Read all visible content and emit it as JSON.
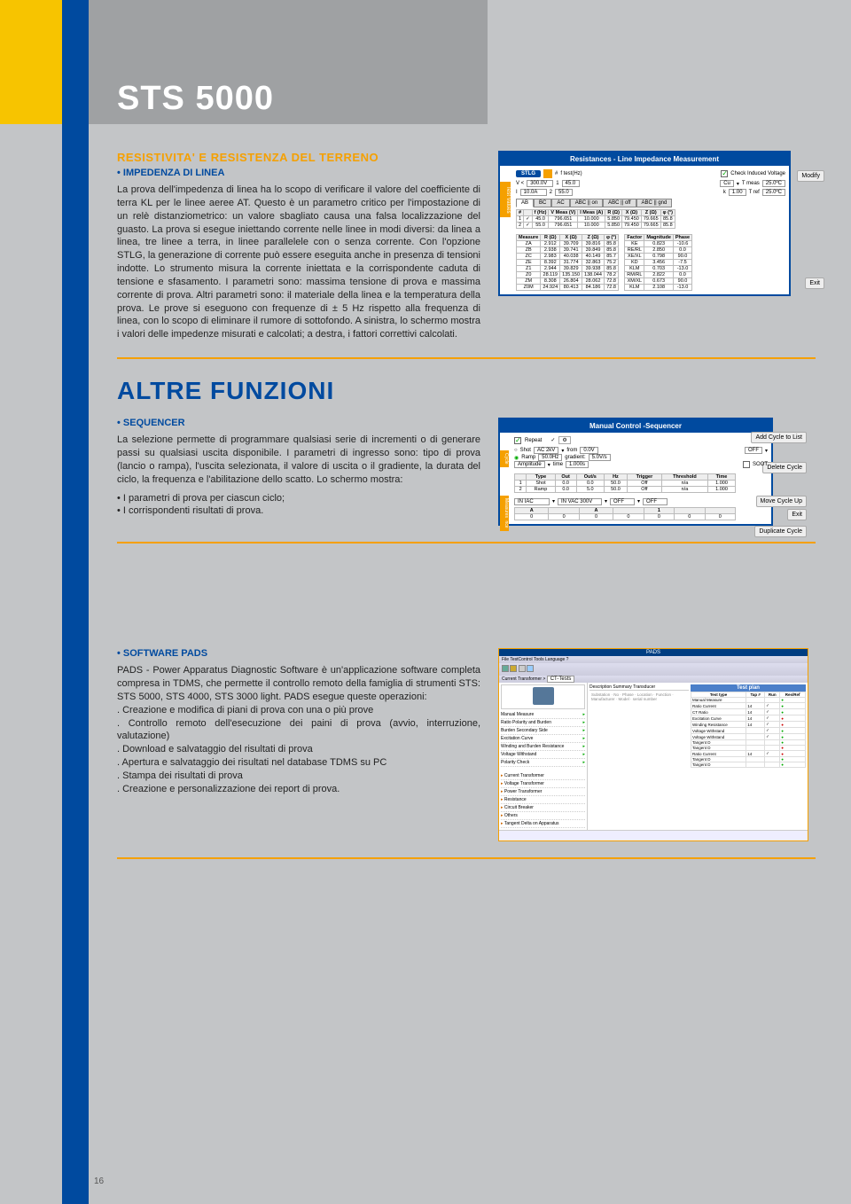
{
  "product_title": "STS 5000",
  "page_number": "16",
  "section1": {
    "title": "RESISTIVITA' E RESISTENZA DEL TERRENO",
    "subtitle": "• IMPEDENZA DI LINEA",
    "body": "La prova dell'impedenza di linea ha lo scopo di verificare il valore del coefficiente di terra KL per le linee aeree AT. Questo è un parametro critico per l'impostazione di un relè distanziometrico: un valore sbagliato causa una falsa localizzazione del guasto. La prova si esegue iniettando corrente nelle linee in modi diversi: da linea a linea, tre linee a terra, in linee parallelele con o senza corrente. Con l'opzione STLG, la generazione di corrente può essere eseguita anche in presenza di tensioni indotte. Lo strumento misura la corrente iniettata e la corrispondente caduta di tensione e sfasamento. I parametri sono: massima tensione di prova e massima corrente di prova. Altri parametri sono: il materiale della linea e la temperatura della prova. Le prove si eseguono con frequenze di ± 5 Hz rispetto alla frequenza di linea, con lo scopo di eliminare il rumore di sottofondo. A sinistra, lo schermo mostra i valori delle impedenze misurati e calcolati; a destra, i fattori correttivi calcolati."
  },
  "section2_big": "ALTRE FUNZIONI",
  "section2": {
    "subtitle": "• SEQUENCER",
    "body": "La selezione permette di programmare qualsiasi serie di incrementi o di generare passi su qualsiasi uscita disponibile. I parametri di ingresso sono: tipo di prova (lancio o rampa), l'uscita selezionata, il valore di uscita o il gradiente, la durata del ciclo, la frequenza e l'abilitazione dello scatto. Lo schermo mostra:",
    "bullet1": "• I parametri di prova per ciascun ciclo;",
    "bullet2": "• I corrispondenti risultati di prova."
  },
  "section3": {
    "subtitle": "• SOFTWARE PADS",
    "body": "PADS - Power Apparatus Diagnostic Software è un'applicazione software completa compresa in TDMS, che permette il controllo remoto della famiglia di strumenti STS: STS 5000, STS 4000, STS 3000 light. PADS esegue queste operazioni:",
    "l1": ". Creazione e modifica di piani di prova con una o più prove",
    "l2": ". Controllo remoto dell'esecuzione dei paini di prova (avvio, interruzione, valutazione)",
    "l3": ". Download e salvataggio del risultati di prova",
    "l4": ". Apertura e salvataggio dei risultati nel database TDMS su PC",
    "l5": ". Stampa dei risultati di prova",
    "l6": ". Creazione e personalizzazione dei report di prova."
  },
  "shot1": {
    "title": "Resistances - Line Impedance Measurement",
    "vtab": "Test Values",
    "modify": "Modify",
    "exit": "Exit",
    "stlg": "STLG",
    "ftest": "f test(Hz)",
    "check_induced": "Check Induced Voltage",
    "v1": "300.0V",
    "f1": "45.0",
    "i1": "10.0A",
    "f2": "55.0",
    "cu": "Cu",
    "tmeas": "T meas",
    "tmeas_v": "25.0ºC",
    "k": "k",
    "k_v": "1.00",
    "tref": "T ref",
    "tref_v": "25.0ºC",
    "tabs": [
      "AB",
      "BC",
      "AC",
      "ABC || on",
      "ABC || off",
      "ABC || gnd"
    ],
    "t1_head": [
      "#",
      "",
      "f (Hz)",
      "V Meas (V)",
      "I Meas (A)",
      "R (Ω)",
      "X (Ω)",
      "Z (Ω)",
      "φ (°)"
    ],
    "t1_rows": [
      [
        "1",
        "✓",
        "45.0",
        "796.651",
        "10.000",
        "5.850",
        "79.450",
        "79.665",
        "85.8"
      ],
      [
        "2",
        "✓",
        "55.0",
        "796.651",
        "10.000",
        "5.850",
        "79.450",
        "79.665",
        "85.8"
      ]
    ],
    "t2l_head": [
      "Measure",
      "R (Ω)",
      "X (Ω)",
      "Z (Ω)",
      "φ (°)"
    ],
    "t2l_rows": [
      [
        "ZA",
        "2.912",
        "39.709",
        "39.816",
        "85.8"
      ],
      [
        "ZB",
        "2.938",
        "39.741",
        "39.849",
        "85.8"
      ],
      [
        "ZC",
        "2.983",
        "40.038",
        "40.149",
        "85.7"
      ],
      [
        "ZE",
        "8.392",
        "31.774",
        "32.863",
        "75.2"
      ],
      [
        "Z1",
        "2.944",
        "39.829",
        "39.938",
        "85.8"
      ],
      [
        "Z0",
        "28.119",
        "135.150",
        "138.044",
        "78.2"
      ],
      [
        "ZM",
        "8.308",
        "26.804",
        "28.062",
        "72.8"
      ],
      [
        "Z0M",
        "24.924",
        "80.413",
        "84.186",
        "72.8"
      ]
    ],
    "t2r_head": [
      "Factor",
      "Magnitude",
      "Phase"
    ],
    "t2r_rows": [
      [
        "KE",
        "0.823",
        "-10.6"
      ],
      [
        "RE/RL",
        "2.850",
        "0.0"
      ],
      [
        "XE/XL",
        "0.798",
        "90.0"
      ],
      [
        "KD",
        "3.456",
        "-7.5"
      ],
      [
        "KLM",
        "0.703",
        "-13.0"
      ],
      [
        "RM/RL",
        "2.822",
        "0.0"
      ],
      [
        "XM/XL",
        "0.673",
        "90.0"
      ],
      [
        "KLM",
        "2.108",
        "-13.0"
      ]
    ]
  },
  "shot2": {
    "title": "Manual Control -Sequencer",
    "repeat": "Repeat",
    "vtab1": "Cycle",
    "vtab2": "Sequence",
    "vtab3": "Measures",
    "btn1": "Add Cycle to List",
    "btn2": "Delete Cycle",
    "btn3": "Move Cycle Up",
    "btn4": "Duplicate Cycle",
    "btn5": "Exit",
    "shot": "Shot",
    "ramp": "Ramp",
    "ac2kv": "AC 2kV",
    "from": "from",
    "from_v": "0.0V",
    "hz50": "50.0Hz",
    "grad": "gradient:",
    "grad_v": "5.0V/s",
    "amp": "Amplitude",
    "time": "time",
    "time_v": "1.000s",
    "off": "OFF",
    "soot": "SOOT",
    "tbl_head": [
      "",
      "Type",
      "Out",
      "Out/s",
      "Hz",
      "Trigger",
      "Threshold",
      "Time"
    ],
    "tbl_rows": [
      [
        "1",
        "Shot",
        "0.0",
        "0.0",
        "50.0",
        "Off",
        "n/a",
        "1.000"
      ],
      [
        "2",
        "Ramp",
        "0.0",
        "5.0",
        "50.0",
        "Off",
        "n/a",
        "1.000"
      ]
    ],
    "iniac": "IN IAC",
    "invac": "IN VAC 300V",
    "m_head": [
      "A",
      "",
      "A",
      "",
      "1",
      "",
      ""
    ],
    "m_row": [
      "0",
      "0",
      "0",
      "0",
      "0",
      "0",
      "0"
    ]
  },
  "shot3": {
    "title": "PADS",
    "menu": "File  TestControl  Tools  Language  ?",
    "ct": "Current Transformer",
    "cttests": "CT-Tests",
    "left_items": [
      "Manual Measure",
      "Ratio Polarity and Burden",
      "Burden Secondary Side",
      "Excitation Curve",
      "Winding and Burden Resistance",
      "Voltage Withstand",
      "Polarity Check"
    ],
    "tree": [
      "Current Transformer",
      "Voltage Transformer",
      "Power Transformer",
      "Resistance",
      "Circuit Breaker",
      "Others",
      "Tangent Delta on Apparatus"
    ],
    "tp_head": "Test plan",
    "tp_cols": [
      "Test type",
      "Tap #",
      "Run",
      "Res/Ref"
    ],
    "tp_rows": [
      [
        "Manual Measure",
        "",
        "",
        ""
      ],
      [
        "Ratio Current",
        "14",
        "✓",
        ""
      ],
      [
        "CT Ratio",
        "14",
        "✓",
        ""
      ],
      [
        "Excitation Curve",
        "14",
        "✓",
        ""
      ],
      [
        "Winding Resistance",
        "14",
        "✓",
        ""
      ],
      [
        "Voltage Withstand",
        "",
        "✓",
        ""
      ],
      [
        "Voltage Withstand",
        "",
        "✓",
        ""
      ],
      [
        "Tangent D",
        "",
        "",
        ""
      ],
      [
        "Tangent D",
        "",
        "",
        ""
      ],
      [
        "Ratio Current",
        "14",
        "✓",
        ""
      ],
      [
        "Tangent D",
        "",
        "",
        ""
      ],
      [
        "Tangent D",
        "",
        "",
        ""
      ]
    ]
  }
}
